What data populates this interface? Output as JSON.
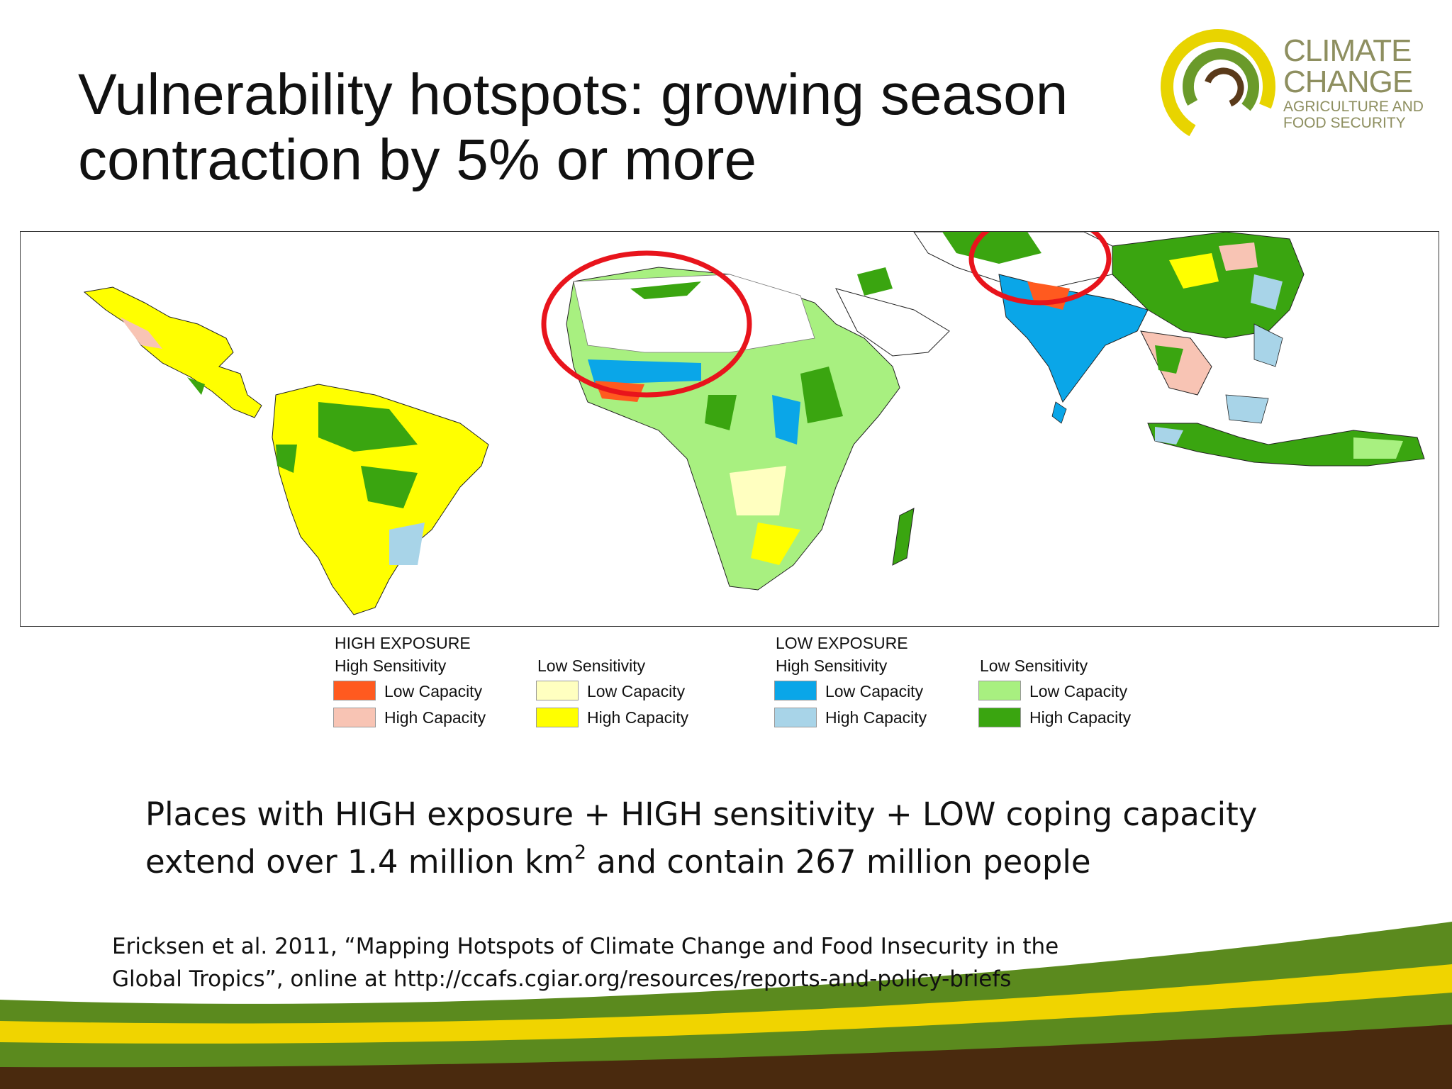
{
  "title": {
    "line1": "Vulnerability hotspots: growing season",
    "line2": "contraction by 5% or more"
  },
  "logo": {
    "line1": "CLIMATE",
    "line2": "CHANGE",
    "line3": "AGRICULTURE AND",
    "line4": "FOOD SECURITY"
  },
  "legend": {
    "high_exposure": {
      "heading": "HIGH EXPOSURE",
      "high_sensitivity": {
        "label": "High Sensitivity",
        "low_capacity": {
          "label": "Low Capacity",
          "color": "#ff5a1f"
        },
        "high_capacity": {
          "label": "High Capacity",
          "color": "#f8c4b4"
        }
      },
      "low_sensitivity": {
        "label": "Low Sensitivity",
        "low_capacity": {
          "label": "Low Capacity",
          "color": "#ffffc0"
        },
        "high_capacity": {
          "label": "High Capacity",
          "color": "#ffff00"
        }
      }
    },
    "low_exposure": {
      "heading": "LOW EXPOSURE",
      "high_sensitivity": {
        "label": "High Sensitivity",
        "low_capacity": {
          "label": "Low Capacity",
          "color": "#0aa6e8"
        },
        "high_capacity": {
          "label": "High Capacity",
          "color": "#a8d4e8"
        }
      },
      "low_sensitivity": {
        "label": "Low Sensitivity",
        "low_capacity": {
          "label": "Low Capacity",
          "color": "#a8f080"
        },
        "high_capacity": {
          "label": "High Capacity",
          "color": "#3aa510"
        }
      }
    }
  },
  "summary": {
    "line1": "Places with HIGH exposure + HIGH sensitivity + LOW coping capacity",
    "line2_a": "extend over 1.4 million km",
    "line2_sup": "2",
    "line2_b": " and contain 267 million people"
  },
  "citation": {
    "line1": "Ericksen et al. 2011, “Mapping Hotspots of Climate Change and Food Insecurity in the",
    "line2": "Global Tropics”, online at http://ccafs.cgiar.org/resources/reports-and-policy-briefs"
  },
  "colors": {
    "hotspot_circle": "#e8141c",
    "logo_yellow": "#e8d400",
    "logo_green": "#6a9a2a",
    "logo_brown": "#5a3a1a",
    "footer_green": "#5b8a1e",
    "footer_yellow": "#f0d400",
    "footer_brown": "#4a2a0e"
  }
}
